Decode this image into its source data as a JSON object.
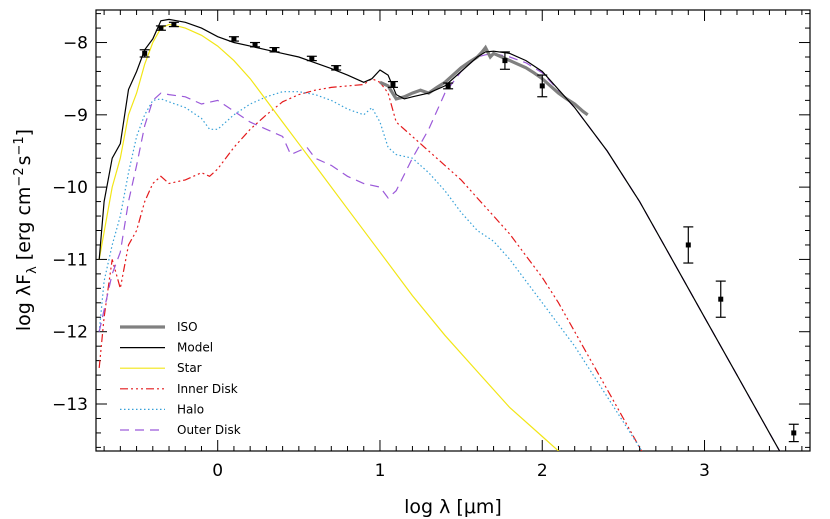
{
  "chart_data": {
    "type": "line",
    "title": "",
    "xlabel": "log λ [μm]",
    "ylabel_main": "log λF",
    "ylabel_sub": "λ",
    "ylabel_units": "[erg cm",
    "ylabel_exp1": "−2",
    "ylabel_mid": "s",
    "ylabel_exp2": "−1",
    "ylabel_close": "]",
    "xlim": [
      -0.75,
      3.65
    ],
    "ylim": [
      -13.65,
      -7.55
    ],
    "xticks": [
      0,
      1,
      2,
      3
    ],
    "xtick_labels": [
      "0",
      "1",
      "2",
      "3"
    ],
    "yticks": [
      -13,
      -12,
      -11,
      -10,
      -9,
      -8
    ],
    "ytick_labels": [
      "−13",
      "−12",
      "−11",
      "−10",
      "−9",
      "−8"
    ],
    "legend_position": "bottom-left",
    "series": [
      {
        "name": "ISO",
        "color": "#808080",
        "dash": "solid",
        "x": [
          1.0,
          1.05,
          1.1,
          1.15,
          1.2,
          1.25,
          1.3,
          1.35,
          1.4,
          1.45,
          1.5,
          1.55,
          1.6,
          1.63,
          1.65,
          1.68,
          1.7,
          1.75,
          1.8,
          1.85,
          1.9,
          1.95,
          2.0,
          2.05,
          2.1,
          2.15,
          2.2,
          2.25,
          2.28
        ],
        "y": [
          -8.55,
          -8.6,
          -8.78,
          -8.75,
          -8.7,
          -8.66,
          -8.7,
          -8.62,
          -8.55,
          -8.45,
          -8.35,
          -8.27,
          -8.2,
          -8.13,
          -8.07,
          -8.2,
          -8.15,
          -8.2,
          -8.25,
          -8.3,
          -8.35,
          -8.42,
          -8.5,
          -8.6,
          -8.7,
          -8.78,
          -8.85,
          -8.95,
          -9.0
        ]
      },
      {
        "name": "Model",
        "color": "#000000",
        "dash": "solid",
        "x": [
          -0.73,
          -0.7,
          -0.65,
          -0.6,
          -0.55,
          -0.5,
          -0.45,
          -0.4,
          -0.35,
          -0.3,
          -0.25,
          -0.2,
          -0.1,
          0.0,
          0.1,
          0.2,
          0.3,
          0.4,
          0.5,
          0.6,
          0.7,
          0.8,
          0.9,
          0.95,
          1.0,
          1.05,
          1.1,
          1.15,
          1.2,
          1.3,
          1.4,
          1.5,
          1.6,
          1.65,
          1.7,
          1.8,
          1.9,
          2.0,
          2.2,
          2.4,
          2.6,
          2.8,
          3.0,
          3.2,
          3.4,
          3.5,
          3.6
        ],
        "y": [
          -11.0,
          -10.2,
          -9.6,
          -9.4,
          -8.65,
          -8.4,
          -8.1,
          -7.95,
          -7.7,
          -7.68,
          -7.7,
          -7.72,
          -7.8,
          -7.92,
          -8.0,
          -8.05,
          -8.1,
          -8.15,
          -8.2,
          -8.28,
          -8.36,
          -8.45,
          -8.55,
          -8.5,
          -8.38,
          -8.45,
          -8.72,
          -8.78,
          -8.75,
          -8.7,
          -8.6,
          -8.4,
          -8.2,
          -8.13,
          -8.12,
          -8.15,
          -8.25,
          -8.4,
          -8.9,
          -9.5,
          -10.2,
          -11.0,
          -11.8,
          -12.6,
          -13.4,
          -13.8,
          -14.2
        ]
      },
      {
        "name": "Star",
        "color": "#f2e616",
        "dash": "solid",
        "x": [
          -0.73,
          -0.65,
          -0.6,
          -0.55,
          -0.5,
          -0.45,
          -0.4,
          -0.35,
          -0.3,
          -0.25,
          -0.2,
          -0.1,
          0.0,
          0.1,
          0.2,
          0.3,
          0.4,
          0.5,
          0.6,
          0.8,
          1.0,
          1.2,
          1.4,
          1.6,
          1.8,
          2.0,
          2.1,
          2.2
        ],
        "y": [
          -11.0,
          -10.0,
          -9.6,
          -9.0,
          -8.7,
          -8.3,
          -8.0,
          -7.8,
          -7.75,
          -7.77,
          -7.8,
          -7.9,
          -8.05,
          -8.25,
          -8.5,
          -8.8,
          -9.1,
          -9.4,
          -9.7,
          -10.3,
          -10.9,
          -11.5,
          -12.05,
          -12.55,
          -13.05,
          -13.45,
          -13.65,
          -13.9
        ]
      },
      {
        "name": "Inner Disk",
        "color": "#e41a1c",
        "dash": "8,3,2,3,2,3,2,3",
        "x": [
          -0.73,
          -0.7,
          -0.65,
          -0.6,
          -0.55,
          -0.5,
          -0.45,
          -0.4,
          -0.35,
          -0.3,
          -0.2,
          -0.1,
          -0.05,
          0.0,
          0.1,
          0.2,
          0.3,
          0.4,
          0.5,
          0.6,
          0.7,
          0.8,
          0.9,
          0.95,
          1.0,
          1.05,
          1.1,
          1.2,
          1.3,
          1.4,
          1.5,
          1.6,
          1.7,
          1.8,
          1.9,
          2.0,
          2.1,
          2.2,
          2.3,
          2.4,
          2.5,
          2.6,
          2.7
        ],
        "y": [
          -12.5,
          -11.8,
          -11.0,
          -11.4,
          -10.8,
          -10.6,
          -10.2,
          -9.95,
          -9.85,
          -9.95,
          -9.9,
          -9.8,
          -9.85,
          -9.75,
          -9.45,
          -9.2,
          -9.0,
          -8.82,
          -8.72,
          -8.66,
          -8.62,
          -8.6,
          -8.58,
          -8.5,
          -8.55,
          -8.7,
          -9.1,
          -9.3,
          -9.5,
          -9.7,
          -9.9,
          -10.15,
          -10.4,
          -10.65,
          -10.95,
          -11.25,
          -11.6,
          -12.0,
          -12.4,
          -12.8,
          -13.2,
          -13.6,
          -14.0
        ]
      },
      {
        "name": "Halo",
        "color": "#35a0d8",
        "dash": "1.5,2.5",
        "x": [
          -0.73,
          -0.7,
          -0.65,
          -0.6,
          -0.55,
          -0.5,
          -0.45,
          -0.4,
          -0.35,
          -0.3,
          -0.2,
          -0.1,
          -0.05,
          0.0,
          0.1,
          0.2,
          0.3,
          0.4,
          0.5,
          0.6,
          0.7,
          0.8,
          0.9,
          0.95,
          1.0,
          1.05,
          1.1,
          1.2,
          1.3,
          1.4,
          1.5,
          1.6,
          1.7,
          1.8,
          1.9,
          2.0,
          2.1,
          2.2,
          2.3,
          2.4,
          2.5,
          2.6,
          2.7
        ],
        "y": [
          -12.0,
          -11.3,
          -10.8,
          -10.4,
          -9.8,
          -9.3,
          -9.0,
          -8.8,
          -8.78,
          -8.82,
          -8.9,
          -9.05,
          -9.2,
          -9.2,
          -9.0,
          -8.85,
          -8.75,
          -8.68,
          -8.68,
          -8.72,
          -8.8,
          -8.92,
          -9.0,
          -8.9,
          -9.1,
          -9.45,
          -9.55,
          -9.6,
          -9.8,
          -10.05,
          -10.35,
          -10.6,
          -10.75,
          -11.0,
          -11.3,
          -11.6,
          -11.9,
          -12.2,
          -12.55,
          -12.9,
          -13.25,
          -13.6,
          -14.0
        ]
      },
      {
        "name": "Outer Disk",
        "color": "#9b59d9",
        "dash": "9,6",
        "x": [
          -0.73,
          -0.65,
          -0.6,
          -0.55,
          -0.5,
          -0.45,
          -0.4,
          -0.35,
          -0.3,
          -0.2,
          -0.1,
          0.0,
          0.1,
          0.2,
          0.3,
          0.4,
          0.45,
          0.5,
          0.55,
          0.6,
          0.7,
          0.8,
          0.9,
          1.0,
          1.05,
          1.1,
          1.2,
          1.3,
          1.4,
          1.5,
          1.6,
          1.65,
          1.7,
          1.8,
          1.9,
          2.0,
          2.2,
          2.4,
          2.6,
          2.8,
          3.0,
          3.2,
          3.4,
          3.5,
          3.6
        ],
        "y": [
          -12.0,
          -11.2,
          -10.9,
          -10.2,
          -9.7,
          -9.15,
          -8.8,
          -8.7,
          -8.72,
          -8.75,
          -8.85,
          -8.8,
          -8.95,
          -9.1,
          -9.2,
          -9.3,
          -9.55,
          -9.5,
          -9.45,
          -9.6,
          -9.7,
          -9.85,
          -9.95,
          -10.0,
          -10.15,
          -10.05,
          -9.6,
          -9.2,
          -8.7,
          -8.4,
          -8.2,
          -8.17,
          -8.15,
          -8.2,
          -8.28,
          -8.42,
          -8.9,
          -9.5,
          -10.2,
          -11.0,
          -11.8,
          -12.6,
          -13.4,
          -13.8,
          -14.2
        ]
      }
    ],
    "observed_points": {
      "name": "",
      "x": [
        -0.45,
        -0.35,
        -0.27,
        0.1,
        0.23,
        0.35,
        0.58,
        0.73,
        1.08,
        1.42,
        1.77,
        2.0,
        2.9,
        3.1,
        3.55
      ],
      "y": [
        -8.15,
        -7.8,
        -7.75,
        -7.95,
        -8.03,
        -8.1,
        -8.22,
        -8.35,
        -8.58,
        -8.6,
        -8.25,
        -8.6,
        -10.8,
        -11.55,
        -13.4
      ],
      "err": [
        0.05,
        0.03,
        0.03,
        0.03,
        0.03,
        0.03,
        0.03,
        0.03,
        0.04,
        0.04,
        0.12,
        0.15,
        0.25,
        0.25,
        0.12
      ]
    }
  }
}
